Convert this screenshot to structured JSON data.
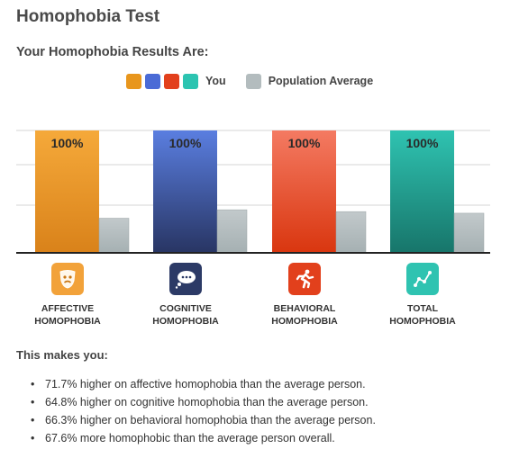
{
  "page": {
    "title": "Homophobia Test",
    "subtitle": "Your Homophobia Results Are:"
  },
  "legend": {
    "you_label": "You",
    "avg_label": "Population Average",
    "you_swatches": [
      "#e8961d",
      "#4a6bd6",
      "#e2401c",
      "#2cc4b1"
    ],
    "avg_swatch": "#b3bcbe"
  },
  "chart_data": {
    "type": "bar",
    "categories": [
      "AFFECTIVE HOMOPHOBIA",
      "COGNITIVE HOMOPHOBIA",
      "BEHAVIORAL HOMOPHOBIA",
      "TOTAL HOMOPHOBIA"
    ],
    "series": [
      {
        "name": "You",
        "values": [
          100,
          100,
          100,
          100
        ],
        "labels": [
          "100%",
          "100%",
          "100%",
          "100%"
        ]
      },
      {
        "name": "Population Average",
        "values": [
          28.3,
          35.2,
          33.7,
          32.4
        ]
      }
    ],
    "ylim": [
      0,
      100
    ],
    "grid": true,
    "legend": "top-center",
    "colors": {
      "you": [
        [
          "#f5a93a",
          "#d9821a"
        ],
        [
          "#5a7ee0",
          "#283563"
        ],
        [
          "#f47a62",
          "#d9360f"
        ],
        [
          "#2fc3b1",
          "#17756a"
        ]
      ],
      "avg": [
        "#c2c9cb",
        "#a5b0b2"
      ]
    }
  },
  "icons": [
    "theater-mask-icon",
    "thought-bubble-icon",
    "running-person-icon",
    "line-graph-icon"
  ],
  "icon_colors": [
    "#f2a23a",
    "#2c3a66",
    "#e2401c",
    "#2fc3b1"
  ],
  "summary": {
    "intro": "This makes you:",
    "items": [
      "71.7% higher on affective homophobia than the average person.",
      "64.8% higher on cognitive homophobia than the average person.",
      "66.3% higher on behavioral homophobia than the average person.",
      "67.6% more homophobic than the average person overall."
    ]
  }
}
